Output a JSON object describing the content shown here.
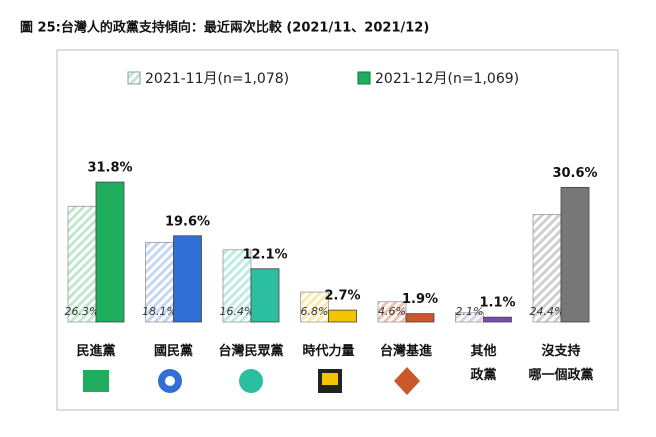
{
  "chart_data": {
    "type": "bar",
    "title": "圖 25:台灣人的政黨支持傾向：最近兩次比較  (2021/11、2021/12)",
    "categories": [
      "民進黨",
      "國民黨",
      "台灣民眾黨",
      "時代力量",
      "台灣基進",
      "其他\n政黨",
      "沒支持\n哪一個政黨"
    ],
    "series": [
      {
        "name": "2021-11月(n=1,078)",
        "hatched": true,
        "colors": [
          "#bfe8cf",
          "#c6d6f2",
          "#bfece2",
          "#fbe9a8",
          "#f0c3b0",
          "#ddd0ee",
          "#d0d0d0"
        ],
        "values": [
          26.3,
          18.1,
          16.4,
          6.8,
          4.6,
          2.1,
          24.4
        ],
        "value_labels": [
          "26.3%",
          "18.1%",
          "16.4%",
          "6.8%",
          "4.6%",
          "2.1%",
          "24.4%"
        ]
      },
      {
        "name": "2021-12月(n=1,069)",
        "hatched": false,
        "colors": [
          "#1fae5e",
          "#2f6fd6",
          "#2bbfa0",
          "#f2c500",
          "#c9582a",
          "#7a4bb0",
          "#777777"
        ],
        "values": [
          31.8,
          19.6,
          12.1,
          2.7,
          1.9,
          1.1,
          30.6
        ],
        "value_labels": [
          "31.8%",
          "19.6%",
          "12.1%",
          "2.7%",
          "1.9%",
          "1.1%",
          "30.6%"
        ]
      }
    ]
  }
}
